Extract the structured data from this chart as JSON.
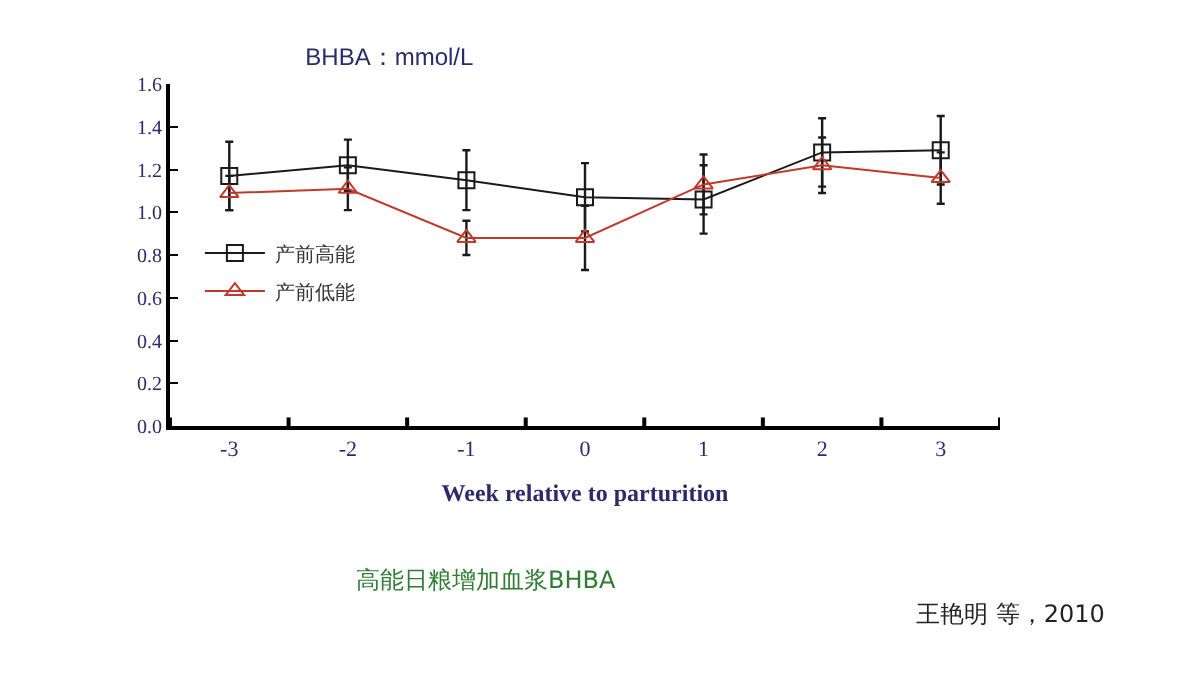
{
  "chart_data": {
    "type": "line",
    "title": "BHBA：mmol/L",
    "xlabel": "Week relative to parturition",
    "categories": [
      "-3",
      "-2",
      "-1",
      "0",
      "1",
      "2",
      "3"
    ],
    "series": [
      {
        "name": "产前高能",
        "color": "#1a1a1a",
        "values": [
          1.17,
          1.22,
          1.15,
          1.07,
          1.06,
          1.28,
          1.29
        ],
        "errors": [
          0.16,
          0.12,
          0.14,
          0.16,
          0.16,
          0.16,
          0.16
        ],
        "marker": "square"
      },
      {
        "name": "产前低能",
        "color": "#c0392b",
        "values": [
          1.09,
          1.11,
          0.88,
          0.88,
          1.13,
          1.22,
          1.16
        ],
        "errors": [
          0.08,
          0.1,
          0.08,
          0.15,
          0.14,
          0.13,
          0.12
        ],
        "marker": "triangle"
      }
    ],
    "ylim": [
      0,
      1.6
    ],
    "yticks": [
      {
        "value": 0,
        "label": "0.0"
      },
      0.2,
      0.4,
      0.6,
      0.8,
      {
        "value": 1,
        "label": "1.0"
      },
      1.2,
      1.4,
      1.6
    ],
    "legend": "left",
    "line_style": "solid",
    "annotations": [
      "高能日粮增加血浆BHBA",
      "王艳明 等，2010"
    ]
  }
}
